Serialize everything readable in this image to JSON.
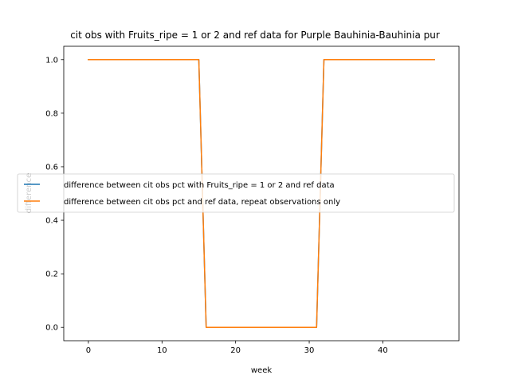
{
  "chart_data": {
    "type": "line",
    "title": "cit obs with Fruits_ripe = 1 or 2 and ref data for Purple Bauhinia-Bauhinia pur",
    "xlabel": "week",
    "ylabel": "difference",
    "xlim": [
      -3.35,
      50.35
    ],
    "ylim": [
      -0.05,
      1.05
    ],
    "x_ticks": [
      0,
      10,
      20,
      30,
      40
    ],
    "y_ticks": [
      0.0,
      0.2,
      0.4,
      0.6,
      0.8,
      1.0
    ],
    "x_tick_labels": [
      "0",
      "10",
      "20",
      "30",
      "40"
    ],
    "y_tick_labels": [
      "0.0",
      "0.2",
      "0.4",
      "0.6",
      "0.8",
      "1.0"
    ],
    "grid": false,
    "legend_position": "center-left",
    "x": [
      0,
      15,
      16,
      31,
      32,
      47
    ],
    "series": [
      {
        "name": "difference between cit obs pct with Fruits_ripe = 1 or 2 and ref data",
        "color": "#1f77b4",
        "values": [
          1,
          1,
          0,
          0,
          1,
          1
        ]
      },
      {
        "name": "difference between cit obs pct and ref data, repeat observations only",
        "color": "#ff7f0e",
        "values": [
          1,
          1,
          0,
          0,
          1,
          1
        ]
      }
    ]
  }
}
